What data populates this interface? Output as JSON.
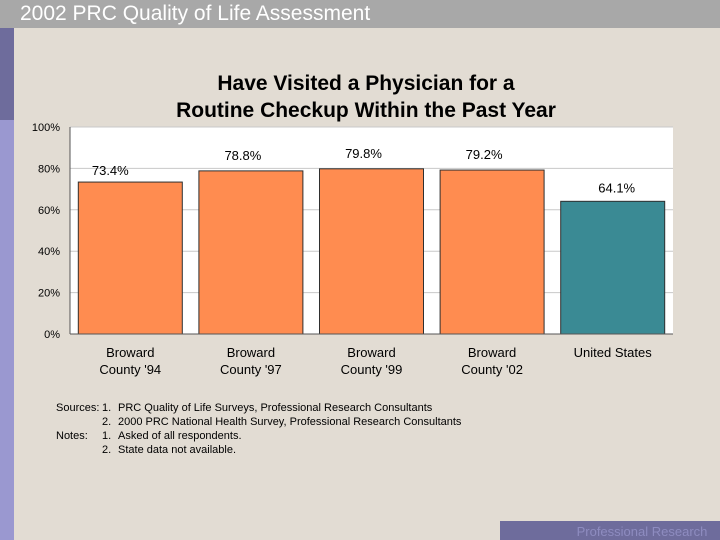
{
  "header": {
    "title": "2002 PRC Quality of Life Assessment"
  },
  "chart_data": {
    "type": "bar",
    "title": [
      "Have Visited a Physician for a",
      "Routine Checkup Within the Past Year"
    ],
    "categories": [
      [
        "Broward",
        "County '94"
      ],
      [
        "Broward",
        "County '97"
      ],
      [
        "Broward",
        "County '99"
      ],
      [
        "Broward",
        "County '02"
      ],
      [
        "United States"
      ]
    ],
    "values": [
      73.4,
      78.8,
      79.8,
      79.2,
      64.1
    ],
    "value_labels": [
      "73.4%",
      "78.8%",
      "79.8%",
      "79.2%",
      "64.1%"
    ],
    "bar_colors": [
      "#ff8c50",
      "#ff8c50",
      "#ff8c50",
      "#ff8c50",
      "#3a8a94"
    ],
    "ylim": [
      0,
      100
    ],
    "yticks": [
      0,
      20,
      40,
      60,
      80,
      100
    ],
    "ytick_labels": [
      "0%",
      "20%",
      "40%",
      "60%",
      "80%",
      "100%"
    ],
    "grid": true,
    "xlabel": "",
    "ylabel": ""
  },
  "notes": {
    "sources_label": "Sources:",
    "notes_label": "Notes:",
    "sources": [
      {
        "num": "1.",
        "text": "PRC Quality of Life Surveys, Professional Research Consultants"
      },
      {
        "num": "2.",
        "text": "2000 PRC National Health Survey, Professional Research Consultants"
      }
    ],
    "notes": [
      {
        "num": "1.",
        "text": "Asked of all respondents."
      },
      {
        "num": "2.",
        "text": "State data not available."
      }
    ]
  },
  "footer": {
    "brand": "Professional Research Consultants"
  }
}
